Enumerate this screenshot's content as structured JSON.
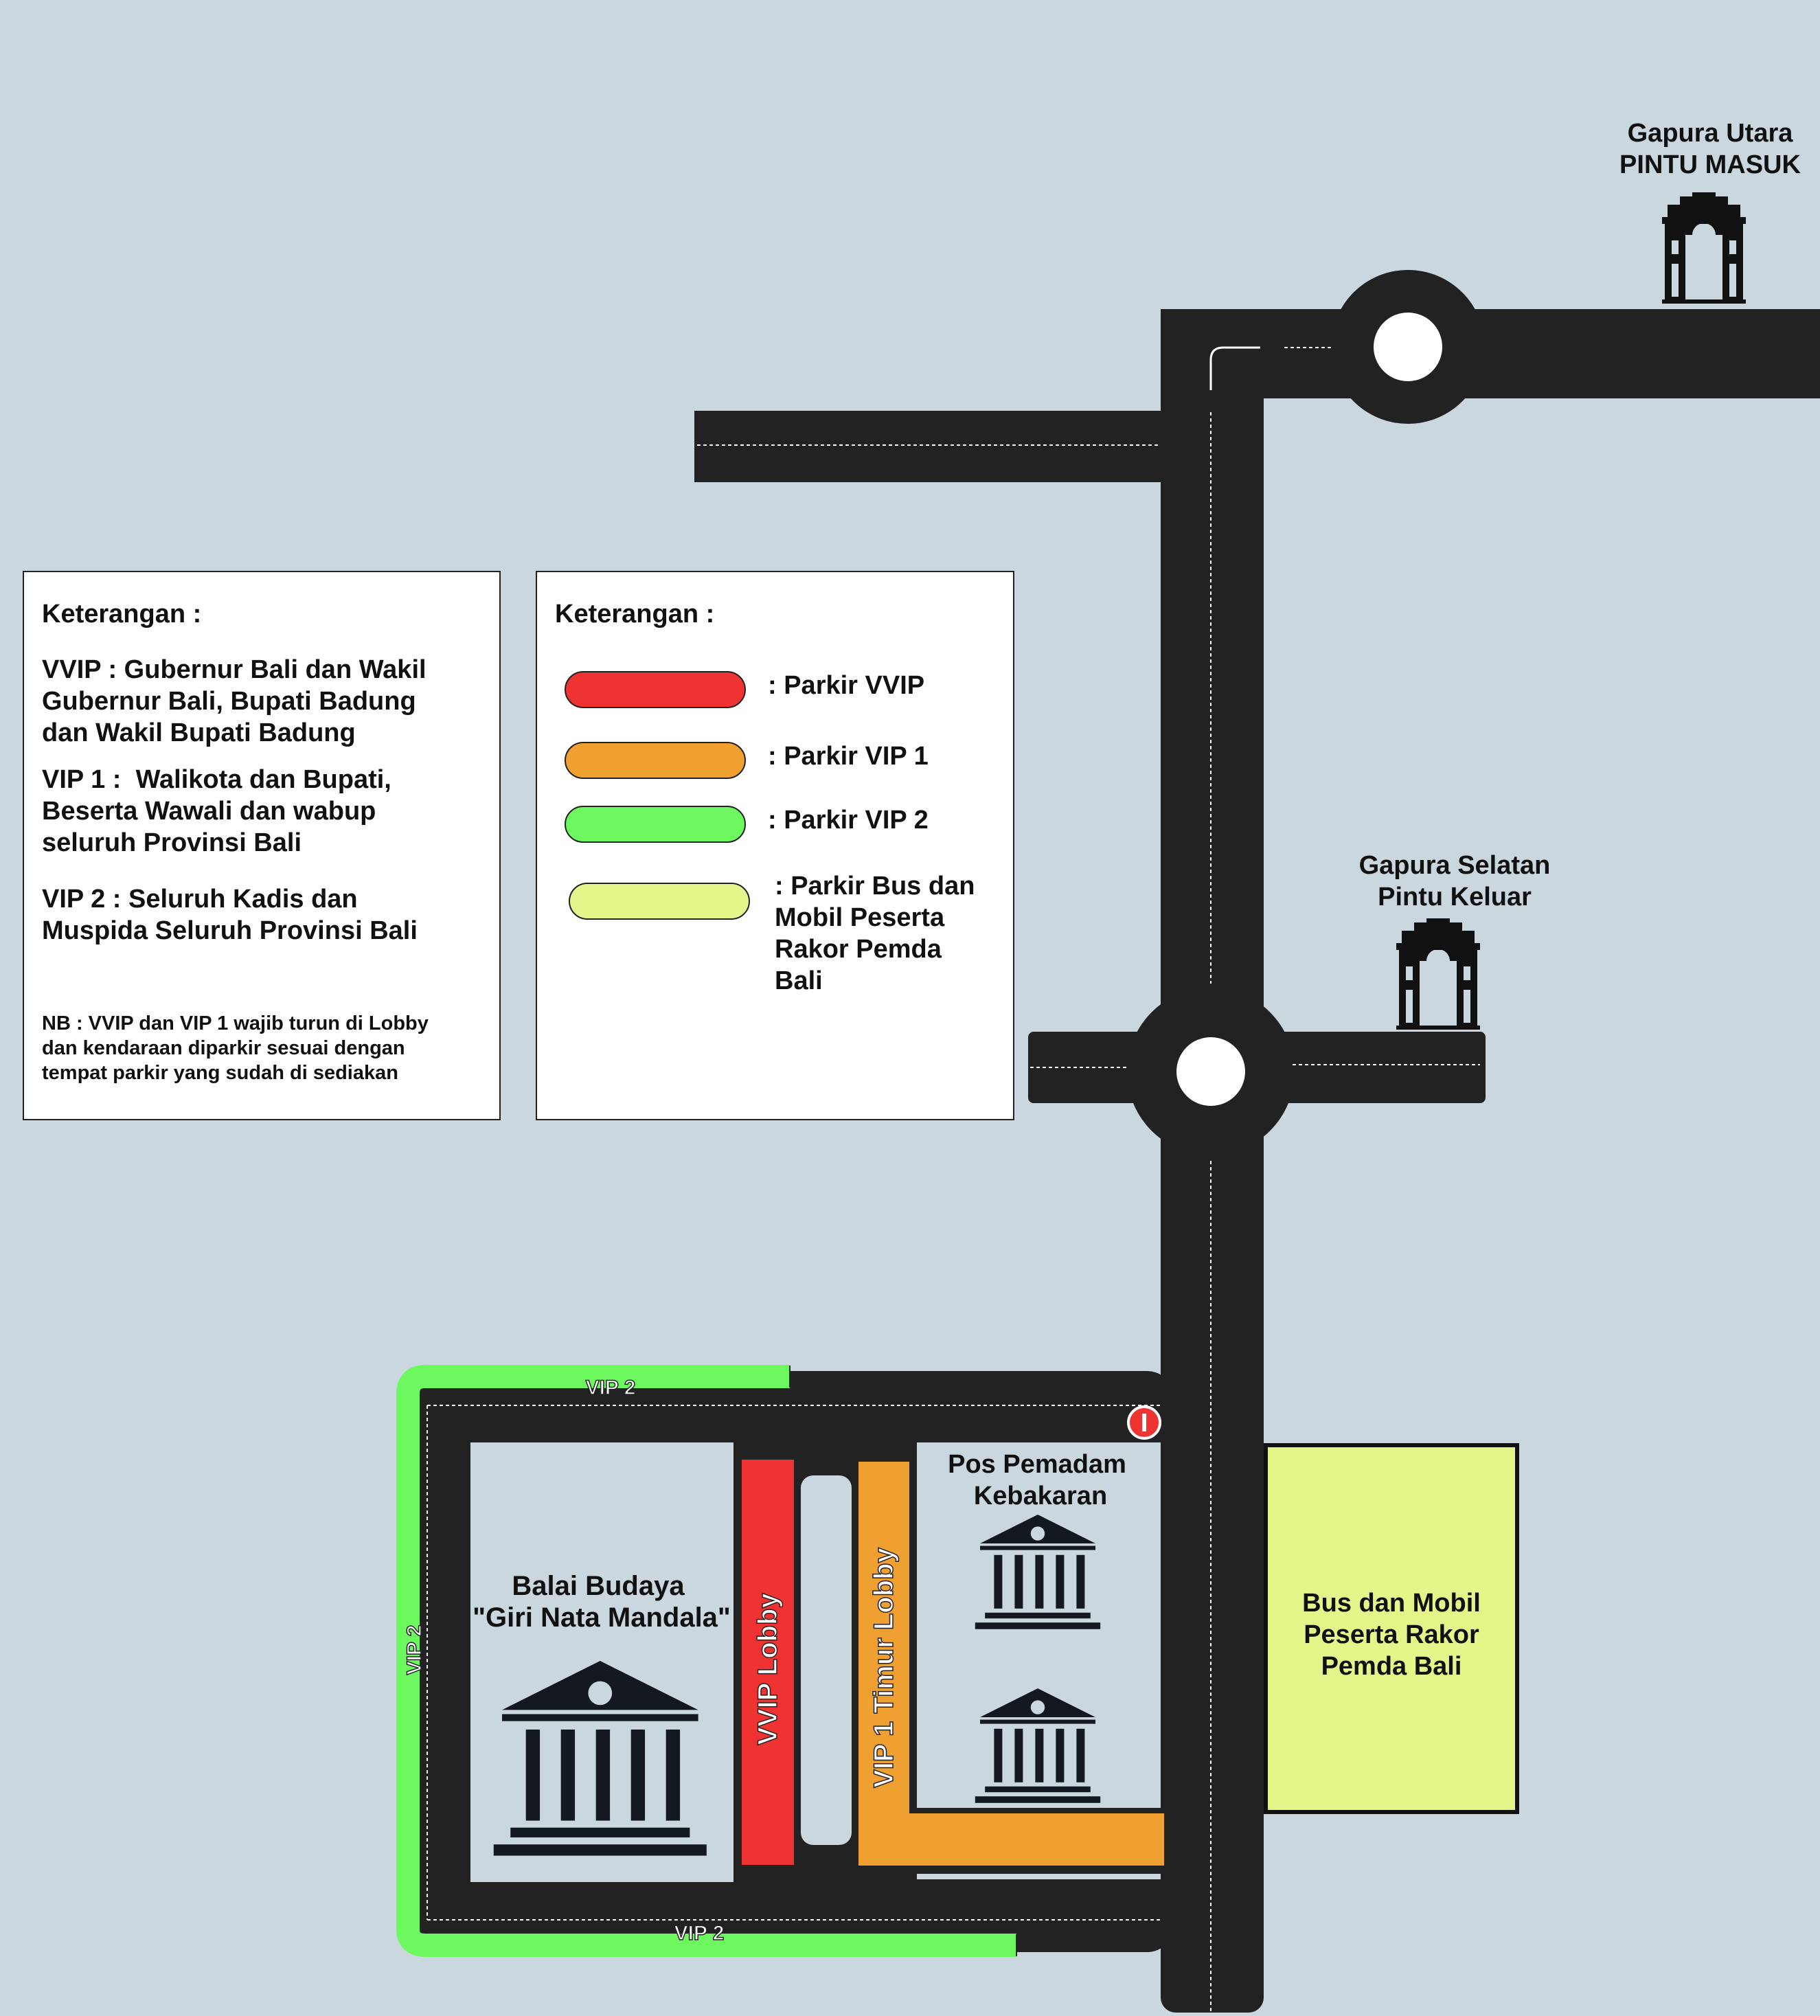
{
  "map": {
    "gate_north": {
      "line1": "Gapura Utara",
      "line2": "PINTU MASUK"
    },
    "gate_south": {
      "line1": "Gapura Selatan",
      "line2": "Pintu Keluar"
    },
    "hall": {
      "line1": "Balai Budaya",
      "line2": "\"Giri Nata Mandala\""
    },
    "fire_post": {
      "line1": "Pos Pemadam",
      "line2": "Kebakaran"
    },
    "bus_parking": {
      "line1": "Bus dan Mobil",
      "line2": "Peserta Rakor",
      "line3": "Pemda Bali"
    },
    "labels": {
      "vip2_top": "VIP 2",
      "vip2_bottom": "VIP 2",
      "vip2_left": "VIP 2",
      "vvip_lobby": "VVIP Lobby",
      "vip1_lobby": "VIP 1 Timur Lobby"
    },
    "colors": {
      "background": "#cbd7df",
      "road": "#222222",
      "vvip": "#ef3232",
      "vip1": "#f0a030",
      "vip2": "#6ef860",
      "bus": "#e6f58a"
    },
    "icons": [
      "gate-icon",
      "building-icon",
      "no-entry-icon"
    ]
  },
  "legend_info": {
    "title": "Keterangan :",
    "vvip": [
      "VVIP : Gubernur Bali dan Wakil",
      "Gubernur Bali, Bupati Badung",
      "dan Wakil Bupati Badung"
    ],
    "vip1": [
      "VIP 1 :  Walikota dan Bupati,",
      "Beserta Wawali dan wabup",
      "seluruh Provinsi Bali"
    ],
    "vip2": [
      "VIP 2 : Seluruh Kadis dan",
      "Muspida Seluruh Provinsi Bali"
    ],
    "nb": [
      "NB : VVIP dan VIP 1 wajib turun di Lobby",
      "dan kendaraan diparkir sesuai dengan",
      "tempat parkir yang sudah di sediakan"
    ]
  },
  "legend_colors": {
    "title": "Keterangan :",
    "items": [
      {
        "color": "#ef3232",
        "label": ": Parkir VVIP"
      },
      {
        "color": "#f0a030",
        "label": ": Parkir VIP 1"
      },
      {
        "color": "#6ef860",
        "label": ": Parkir VIP 2"
      },
      {
        "color": "#e6f58a",
        "label_lines": [
          ": Parkir Bus dan",
          "Mobil Peserta",
          "Rakor Pemda",
          "Bali"
        ]
      }
    ]
  }
}
